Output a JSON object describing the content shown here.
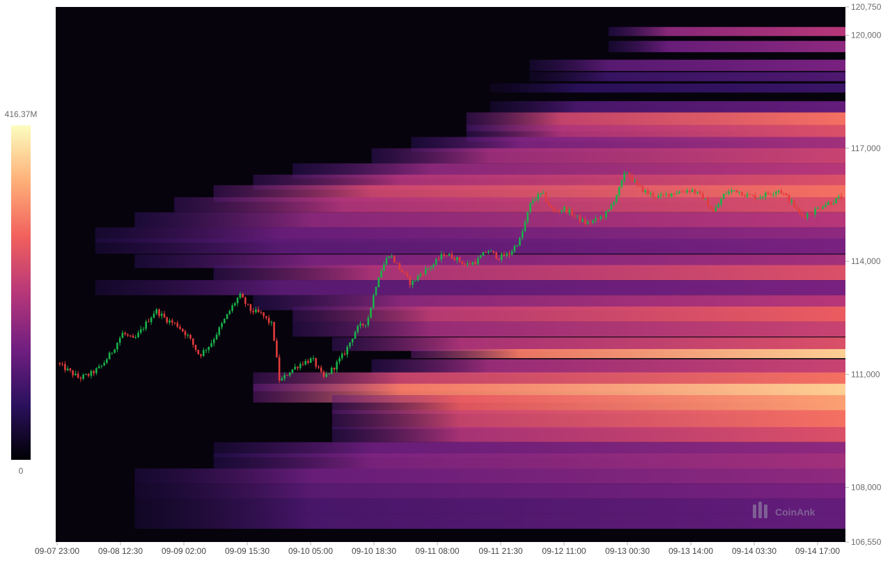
{
  "chart_data": {
    "type": "heatmap",
    "subtype": "liquidation-heatmap-with-candlesticks",
    "y_axis": {
      "range": [
        106550,
        120750
      ],
      "ticks": [
        {
          "value": 120750,
          "label": "120,750"
        },
        {
          "value": 120000,
          "label": "120,000"
        },
        {
          "value": 117000,
          "label": "117,000"
        },
        {
          "value": 114000,
          "label": "114,000"
        },
        {
          "value": 111000,
          "label": "111,000"
        },
        {
          "value": 108000,
          "label": "108,000"
        },
        {
          "value": 106550,
          "label": "106,550"
        }
      ],
      "position": "right"
    },
    "x_axis": {
      "ticks": [
        "09-07 23:00",
        "09-08 12:30",
        "09-09 02:00",
        "09-09 15:30",
        "09-10 05:00",
        "09-10 18:30",
        "09-11 08:00",
        "09-11 21:30",
        "09-12 11:00",
        "09-13 00:30",
        "09-13 14:00",
        "09-14 03:30",
        "09-14 17:00"
      ]
    },
    "colorbar": {
      "max_label": "416.37M",
      "min_label": "0",
      "colors": [
        "#000004",
        "#2c115f",
        "#721f81",
        "#b73779",
        "#f1605d",
        "#feb078",
        "#fcfdbf"
      ]
    },
    "price_path": [
      {
        "t": 0,
        "p": 111300
      },
      {
        "t": 0.3,
        "p": 111100
      },
      {
        "t": 0.6,
        "p": 110900
      },
      {
        "t": 0.9,
        "p": 111000
      },
      {
        "t": 1.2,
        "p": 111200
      },
      {
        "t": 1.5,
        "p": 111600
      },
      {
        "t": 1.8,
        "p": 112100
      },
      {
        "t": 2.1,
        "p": 111900
      },
      {
        "t": 2.4,
        "p": 112300
      },
      {
        "t": 2.7,
        "p": 112700
      },
      {
        "t": 3.0,
        "p": 112450
      },
      {
        "t": 3.3,
        "p": 112300
      },
      {
        "t": 3.6,
        "p": 112000
      },
      {
        "t": 3.9,
        "p": 111500
      },
      {
        "t": 4.2,
        "p": 111800
      },
      {
        "t": 4.5,
        "p": 112300
      },
      {
        "t": 4.8,
        "p": 112800
      },
      {
        "t": 5.0,
        "p": 113100
      },
      {
        "t": 5.3,
        "p": 112700
      },
      {
        "t": 5.6,
        "p": 112600
      },
      {
        "t": 5.9,
        "p": 112300
      },
      {
        "t": 6.1,
        "p": 110800
      },
      {
        "t": 6.4,
        "p": 111100
      },
      {
        "t": 6.7,
        "p": 111300
      },
      {
        "t": 7.0,
        "p": 111400
      },
      {
        "t": 7.3,
        "p": 110900
      },
      {
        "t": 7.6,
        "p": 111200
      },
      {
        "t": 7.9,
        "p": 111600
      },
      {
        "t": 8.2,
        "p": 112200
      },
      {
        "t": 8.5,
        "p": 112400
      },
      {
        "t": 8.8,
        "p": 113600
      },
      {
        "t": 9.1,
        "p": 114200
      },
      {
        "t": 9.4,
        "p": 113800
      },
      {
        "t": 9.7,
        "p": 113400
      },
      {
        "t": 10.0,
        "p": 113700
      },
      {
        "t": 10.3,
        "p": 113900
      },
      {
        "t": 10.6,
        "p": 114200
      },
      {
        "t": 10.9,
        "p": 114100
      },
      {
        "t": 11.2,
        "p": 113900
      },
      {
        "t": 11.5,
        "p": 114000
      },
      {
        "t": 11.8,
        "p": 114300
      },
      {
        "t": 12.1,
        "p": 114100
      },
      {
        "t": 12.4,
        "p": 114200
      },
      {
        "t": 12.7,
        "p": 114600
      },
      {
        "t": 13.0,
        "p": 115600
      },
      {
        "t": 13.3,
        "p": 115800
      },
      {
        "t": 13.6,
        "p": 115300
      },
      {
        "t": 13.9,
        "p": 115400
      },
      {
        "t": 14.2,
        "p": 115200
      },
      {
        "t": 14.5,
        "p": 115000
      },
      {
        "t": 14.8,
        "p": 115100
      },
      {
        "t": 15.1,
        "p": 115300
      },
      {
        "t": 15.4,
        "p": 115900
      },
      {
        "t": 15.6,
        "p": 116400
      },
      {
        "t": 15.9,
        "p": 116000
      },
      {
        "t": 16.2,
        "p": 115800
      },
      {
        "t": 16.5,
        "p": 115700
      },
      {
        "t": 16.8,
        "p": 115800
      },
      {
        "t": 17.1,
        "p": 115850
      },
      {
        "t": 17.4,
        "p": 115900
      },
      {
        "t": 17.7,
        "p": 115700
      },
      {
        "t": 18.0,
        "p": 115300
      },
      {
        "t": 18.3,
        "p": 115800
      },
      {
        "t": 18.6,
        "p": 115900
      },
      {
        "t": 18.9,
        "p": 115750
      },
      {
        "t": 19.2,
        "p": 115700
      },
      {
        "t": 19.5,
        "p": 115800
      },
      {
        "t": 19.8,
        "p": 115900
      },
      {
        "t": 20.1,
        "p": 115600
      },
      {
        "t": 20.4,
        "p": 115200
      },
      {
        "t": 20.7,
        "p": 115300
      },
      {
        "t": 21.0,
        "p": 115500
      },
      {
        "t": 21.3,
        "p": 115600
      },
      {
        "t": 21.5,
        "p": 115700
      }
    ],
    "price_t_range": [
      0,
      21.5
    ],
    "liquidation_bands": [
      {
        "price": 120100,
        "intensity": 0.5,
        "start": 0.7,
        "width": 120
      },
      {
        "price": 119700,
        "intensity": 0.4,
        "start": 0.7,
        "width": 150
      },
      {
        "price": 119200,
        "intensity": 0.35,
        "start": 0.6,
        "width": 150
      },
      {
        "price": 118900,
        "intensity": 0.25,
        "start": 0.6,
        "width": 120
      },
      {
        "price": 118600,
        "intensity": 0.2,
        "start": 0.55,
        "width": 120
      },
      {
        "price": 118100,
        "intensity": 0.3,
        "start": 0.55,
        "width": 150
      },
      {
        "price": 117700,
        "intensity": 0.7,
        "start": 0.52,
        "width": 250
      },
      {
        "price": 117400,
        "intensity": 0.6,
        "start": 0.52,
        "width": 220
      },
      {
        "price": 117100,
        "intensity": 0.45,
        "start": 0.45,
        "width": 200
      },
      {
        "price": 116800,
        "intensity": 0.55,
        "start": 0.4,
        "width": 200
      },
      {
        "price": 116400,
        "intensity": 0.5,
        "start": 0.3,
        "width": 200
      },
      {
        "price": 116100,
        "intensity": 0.6,
        "start": 0.25,
        "width": 200
      },
      {
        "price": 115800,
        "intensity": 0.7,
        "start": 0.2,
        "width": 220
      },
      {
        "price": 115500,
        "intensity": 0.6,
        "start": 0.15,
        "width": 200
      },
      {
        "price": 115100,
        "intensity": 0.5,
        "start": 0.1,
        "width": 200
      },
      {
        "price": 114700,
        "intensity": 0.4,
        "start": 0.05,
        "width": 200
      },
      {
        "price": 114400,
        "intensity": 0.35,
        "start": 0.05,
        "width": 200
      },
      {
        "price": 114000,
        "intensity": 0.45,
        "start": 0.1,
        "width": 180
      },
      {
        "price": 113700,
        "intensity": 0.6,
        "start": 0.2,
        "width": 200
      },
      {
        "price": 113300,
        "intensity": 0.35,
        "start": 0.05,
        "width": 200
      },
      {
        "price": 112900,
        "intensity": 0.5,
        "start": 0.25,
        "width": 200
      },
      {
        "price": 112600,
        "intensity": 0.65,
        "start": 0.3,
        "width": 200
      },
      {
        "price": 112200,
        "intensity": 0.55,
        "start": 0.3,
        "width": 200
      },
      {
        "price": 111800,
        "intensity": 0.6,
        "start": 0.35,
        "width": 180
      },
      {
        "price": 111550,
        "intensity": 0.9,
        "start": 0.45,
        "width": 120
      },
      {
        "price": 111200,
        "intensity": 0.55,
        "start": 0.4,
        "width": 200
      },
      {
        "price": 110800,
        "intensity": 0.7,
        "start": 0.25,
        "width": 250
      },
      {
        "price": 110500,
        "intensity": 0.9,
        "start": 0.25,
        "width": 250
      },
      {
        "price": 110200,
        "intensity": 0.8,
        "start": 0.35,
        "width": 250
      },
      {
        "price": 109800,
        "intensity": 0.7,
        "start": 0.35,
        "width": 250
      },
      {
        "price": 109400,
        "intensity": 0.6,
        "start": 0.35,
        "width": 200
      },
      {
        "price": 109000,
        "intensity": 0.4,
        "start": 0.2,
        "width": 200
      },
      {
        "price": 108700,
        "intensity": 0.45,
        "start": 0.2,
        "width": 200
      },
      {
        "price": 108300,
        "intensity": 0.4,
        "start": 0.1,
        "width": 200
      },
      {
        "price": 107900,
        "intensity": 0.35,
        "start": 0.1,
        "width": 200
      },
      {
        "price": 107500,
        "intensity": 0.3,
        "start": 0.1,
        "width": 200
      },
      {
        "price": 107100,
        "intensity": 0.3,
        "start": 0.1,
        "width": 200
      }
    ],
    "watermark": "CoinAnk"
  }
}
